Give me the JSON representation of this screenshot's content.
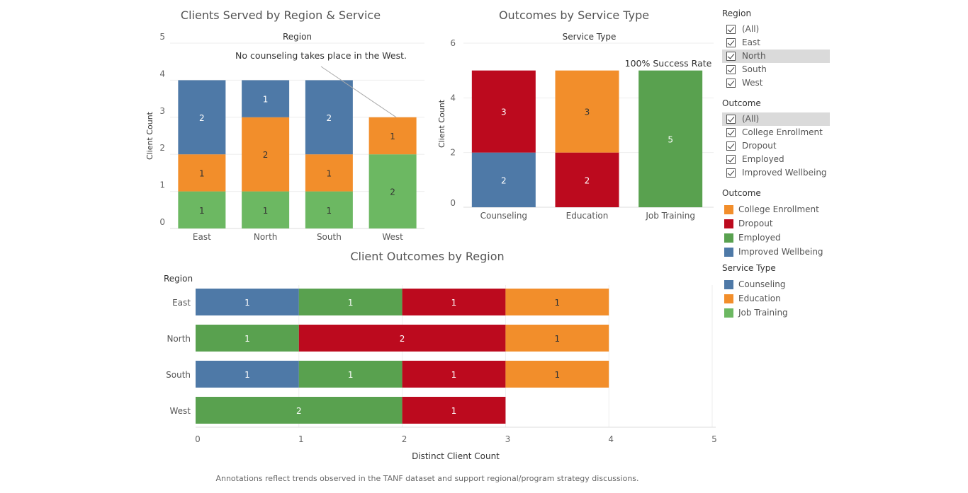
{
  "colors": {
    "blue": "#4e79a7",
    "orange": "#f28e2b",
    "red": "#bc0a1e",
    "green_dark": "#59a14f",
    "green_light": "#6cb862"
  },
  "chart_data": [
    {
      "id": "region_service",
      "type": "bar",
      "stacked": true,
      "title": "Clients Served by Region & Service",
      "header": "Region",
      "ylabel": "Client Count",
      "ylim": [
        0,
        5
      ],
      "yticks": [
        "0",
        "1",
        "2",
        "3",
        "4",
        "5"
      ],
      "categories": [
        "East",
        "North",
        "South",
        "West"
      ],
      "series": [
        {
          "name": "Job Training",
          "color": "#6cb862",
          "values": [
            1,
            1,
            1,
            2
          ]
        },
        {
          "name": "Education",
          "color": "#f28e2b",
          "values": [
            1,
            2,
            1,
            1
          ]
        },
        {
          "name": "Counseling",
          "color": "#4e79a7",
          "values": [
            2,
            1,
            2,
            0
          ]
        }
      ],
      "annotation": "No counseling takes place in the West."
    },
    {
      "id": "outcomes_service",
      "type": "bar",
      "stacked": true,
      "title": "Outcomes by Service Type",
      "header": "Service Type",
      "ylabel": "Client Count",
      "ylim": [
        0,
        6
      ],
      "yticks": [
        "0",
        "2",
        "4",
        "6"
      ],
      "categories": [
        "Counseling",
        "Education",
        "Job Training"
      ],
      "series": [
        {
          "name": "Improved Wellbeing",
          "color": "#4e79a7",
          "values": [
            2,
            0,
            0
          ]
        },
        {
          "name": "Dropout",
          "color": "#bc0a1e",
          "values": [
            3,
            2,
            0
          ]
        },
        {
          "name": "College Enrollment",
          "color": "#f28e2b",
          "values": [
            0,
            3,
            0
          ]
        },
        {
          "name": "Employed",
          "color": "#59a14f",
          "values": [
            0,
            0,
            5
          ]
        }
      ],
      "annotation": "100% Success Rate"
    },
    {
      "id": "outcomes_region",
      "type": "bar",
      "orientation": "horizontal",
      "stacked": true,
      "title": "Client Outcomes by Region",
      "row_header": "Region",
      "xlabel": "Distinct Client Count",
      "xlim": [
        0,
        5
      ],
      "xticks": [
        "0",
        "1",
        "2",
        "3",
        "4",
        "5"
      ],
      "categories": [
        "East",
        "North",
        "South",
        "West"
      ],
      "series": [
        {
          "name": "Improved Wellbeing",
          "color": "#4e79a7",
          "values": [
            1,
            0,
            1,
            0
          ]
        },
        {
          "name": "Employed",
          "color": "#59a14f",
          "values": [
            1,
            1,
            1,
            2
          ]
        },
        {
          "name": "Dropout",
          "color": "#bc0a1e",
          "values": [
            1,
            2,
            1,
            1
          ]
        },
        {
          "name": "College Enrollment",
          "color": "#f28e2b",
          "values": [
            1,
            1,
            1,
            0
          ]
        }
      ]
    }
  ],
  "filters": {
    "region": {
      "title": "Region",
      "items": [
        {
          "label": "(All)",
          "selected": false
        },
        {
          "label": "East",
          "selected": false
        },
        {
          "label": "North",
          "selected": true
        },
        {
          "label": "South",
          "selected": false
        },
        {
          "label": "West",
          "selected": false
        }
      ]
    },
    "outcome": {
      "title": "Outcome",
      "items": [
        {
          "label": "(All)",
          "selected": true
        },
        {
          "label": "College Enrollment",
          "selected": false
        },
        {
          "label": "Dropout",
          "selected": false
        },
        {
          "label": "Employed",
          "selected": false
        },
        {
          "label": "Improved Wellbeing",
          "selected": false
        }
      ]
    }
  },
  "legends": {
    "outcome": {
      "title": "Outcome",
      "items": [
        {
          "label": "College Enrollment",
          "color": "#f28e2b"
        },
        {
          "label": "Dropout",
          "color": "#bc0a1e"
        },
        {
          "label": "Employed",
          "color": "#59a14f"
        },
        {
          "label": "Improved Wellbeing",
          "color": "#4e79a7"
        }
      ]
    },
    "service": {
      "title": "Service Type",
      "items": [
        {
          "label": "Counseling",
          "color": "#4e79a7"
        },
        {
          "label": "Education",
          "color": "#f28e2b"
        },
        {
          "label": "Job Training",
          "color": "#6cb862"
        }
      ]
    }
  },
  "footer": "Annotations reflect trends observed in the TANF dataset and support regional/program strategy discussions."
}
